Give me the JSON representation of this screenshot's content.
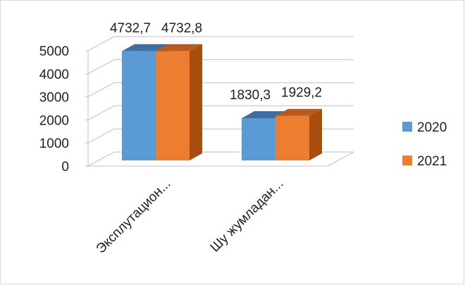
{
  "chart_data": {
    "type": "bar",
    "categories": [
      "Эксплутацион...",
      "Шу жумладан..."
    ],
    "series": [
      {
        "name": "2020",
        "values": [
          4732.7,
          1830.3
        ],
        "labels": [
          "4732,7",
          "1830,3"
        ]
      },
      {
        "name": "2021",
        "values": [
          4732.8,
          1929.2
        ],
        "labels": [
          "4732,8",
          "1929,2"
        ]
      }
    ],
    "ylim": [
      0,
      5000
    ],
    "yticks": [
      "0",
      "1000",
      "2000",
      "3000",
      "4000",
      "5000"
    ],
    "grid": true,
    "legend_position": "right",
    "style": "3d",
    "colors": {
      "2020": {
        "front": "#5b9bd5",
        "top": "#3f6f9f",
        "side": "#2e5f8f"
      },
      "2021": {
        "front": "#ed7d31",
        "top": "#b85a1c",
        "side": "#a84d10"
      }
    }
  }
}
